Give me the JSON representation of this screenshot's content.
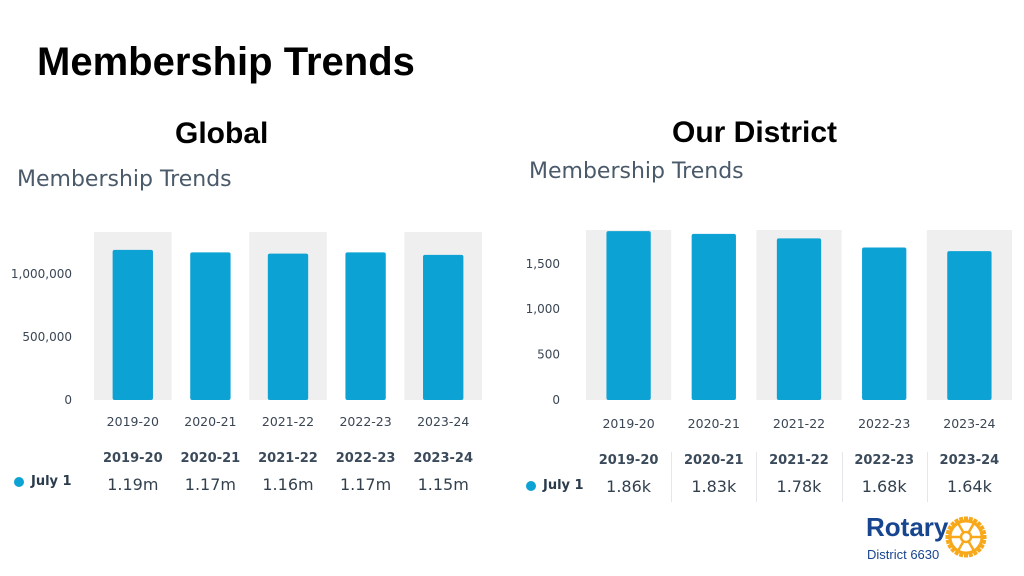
{
  "slide": {
    "title": "Membership Trends"
  },
  "panels": {
    "global": {
      "heading": "Global"
    },
    "district": {
      "heading": "Our District"
    }
  },
  "chart_data": [
    {
      "type": "bar",
      "title": "Membership Trends",
      "categories": [
        "2019-20",
        "2020-21",
        "2021-22",
        "2022-23",
        "2023-24"
      ],
      "series": [
        {
          "name": "July 1",
          "values": [
            1190000,
            1170000,
            1160000,
            1170000,
            1150000
          ]
        }
      ],
      "yticks": [
        "1,000,000",
        "500,000",
        "0"
      ],
      "ytick_values": [
        1000000,
        500000,
        0
      ],
      "ylim": [
        0,
        1300000
      ],
      "highlighted_columns": [
        0,
        2,
        4
      ],
      "summary_values": [
        "1.19m",
        "1.17m",
        "1.16m",
        "1.17m",
        "1.15m"
      ],
      "bar_color": "#0da2d4",
      "legend": "bottom-left"
    },
    {
      "type": "bar",
      "title": "Membership Trends",
      "categories": [
        "2019-20",
        "2020-21",
        "2021-22",
        "2022-23",
        "2023-24"
      ],
      "series": [
        {
          "name": "July 1",
          "values": [
            1860,
            1830,
            1780,
            1680,
            1640
          ]
        }
      ],
      "yticks": [
        "1,500",
        "1,000",
        "500",
        "0"
      ],
      "ytick_values": [
        1500,
        1000,
        500,
        0
      ],
      "ylim": [
        0,
        1850
      ],
      "highlighted_columns": [
        0,
        2,
        4
      ],
      "summary_values": [
        "1.86k",
        "1.83k",
        "1.78k",
        "1.68k",
        "1.64k"
      ],
      "bar_color": "#0da2d4",
      "legend": "bottom-left"
    }
  ],
  "logo": {
    "wordmark": "Rotary",
    "subtitle": "District 6630",
    "brand_color": "#17458f",
    "wheel_color": "#f7a81b"
  }
}
